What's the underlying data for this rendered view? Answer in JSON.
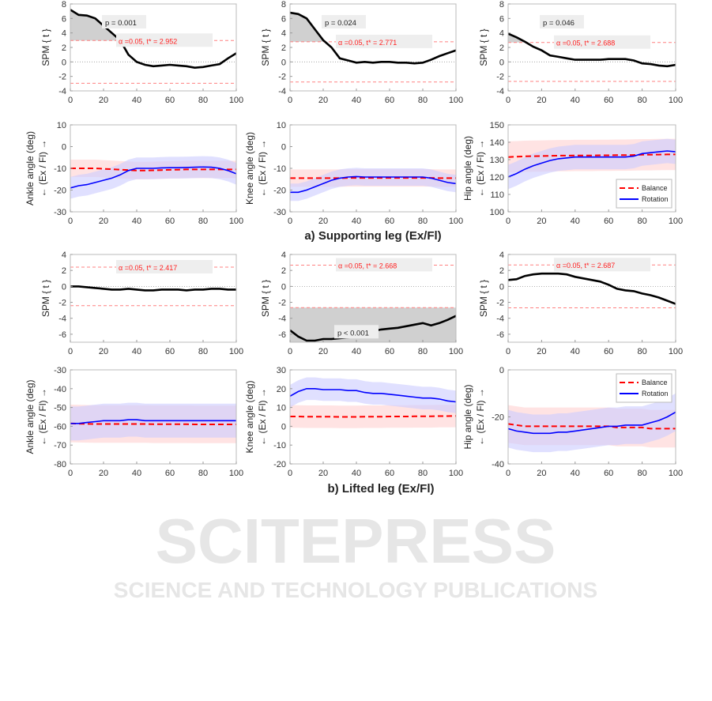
{
  "watermark": {
    "line1": "SCITEPRESS",
    "line2": "SCIENCE AND TECHNOLOGY PUBLICATIONS"
  },
  "section_titles": [
    "a) Supporting leg (Ex/Fl)",
    "b) Lifted leg (Ex/Fl)"
  ],
  "legend": {
    "balance": "Balance",
    "rotation": "Rotation"
  },
  "colors": {
    "spm": "#000000",
    "threshold": "#ff8080",
    "balance": "#ff0000",
    "rotation": "#0000ff",
    "balance_band": "#ffd0d0",
    "rotation_band": "#ccccff",
    "cluster": "#d0d0d0"
  },
  "chart_data": [
    {
      "type": "line",
      "kind": "spm",
      "row": 0,
      "col": 0,
      "ylabel": "SPM { t }",
      "xlim": [
        0,
        100
      ],
      "ylim": [
        -4,
        8
      ],
      "xticks": [
        0,
        20,
        40,
        60,
        80,
        100
      ],
      "yticks": [
        -4,
        -2,
        0,
        2,
        4,
        6,
        8
      ],
      "threshold": 2.952,
      "threshold_label": "α  =0.05,     t* = 2.952",
      "p_label": "p = 0.001",
      "cluster": "upper",
      "x": [
        0,
        5,
        10,
        15,
        20,
        25,
        30,
        35,
        40,
        45,
        50,
        55,
        60,
        65,
        70,
        75,
        80,
        85,
        90,
        95,
        100
      ],
      "y": [
        7.2,
        6.5,
        6.4,
        6.0,
        5.0,
        4.0,
        3.0,
        1.0,
        0,
        -0.4,
        -0.6,
        -0.5,
        -0.4,
        -0.5,
        -0.6,
        -0.8,
        -0.7,
        -0.5,
        -0.3,
        0.5,
        1.2
      ]
    },
    {
      "type": "line",
      "kind": "spm",
      "row": 0,
      "col": 1,
      "ylabel": "SPM { t }",
      "xlim": [
        0,
        100
      ],
      "ylim": [
        -4,
        8
      ],
      "xticks": [
        0,
        20,
        40,
        60,
        80,
        100
      ],
      "yticks": [
        -4,
        -2,
        0,
        2,
        4,
        6,
        8
      ],
      "threshold": 2.771,
      "threshold_label": "α  =0.05,     t* = 2.771",
      "p_label": "p = 0.024",
      "cluster": "upper",
      "x": [
        0,
        5,
        10,
        15,
        20,
        25,
        30,
        35,
        40,
        45,
        50,
        55,
        60,
        65,
        70,
        75,
        80,
        85,
        90,
        95,
        100
      ],
      "y": [
        6.8,
        6.6,
        6.0,
        4.5,
        3.0,
        2.0,
        0.5,
        0.2,
        -0.1,
        0,
        -0.1,
        0,
        0,
        -0.1,
        -0.1,
        -0.2,
        -0.1,
        0.3,
        0.8,
        1.2,
        1.6
      ]
    },
    {
      "type": "line",
      "kind": "spm",
      "row": 0,
      "col": 2,
      "ylabel": "SPM { t }",
      "xlim": [
        0,
        100
      ],
      "ylim": [
        -4,
        8
      ],
      "xticks": [
        0,
        20,
        40,
        60,
        80,
        100
      ],
      "yticks": [
        -4,
        -2,
        0,
        2,
        4,
        6,
        8
      ],
      "threshold": 2.688,
      "threshold_label": "α  =0.05,     t* = 2.688",
      "p_label": "p = 0.046",
      "cluster": "upper",
      "x": [
        0,
        5,
        10,
        15,
        20,
        25,
        30,
        35,
        40,
        45,
        50,
        55,
        60,
        65,
        70,
        75,
        80,
        85,
        90,
        95,
        100
      ],
      "y": [
        3.9,
        3.4,
        2.8,
        2.1,
        1.6,
        0.9,
        0.7,
        0.5,
        0.3,
        0.3,
        0.3,
        0.3,
        0.4,
        0.4,
        0.4,
        0.2,
        -0.2,
        -0.3,
        -0.5,
        -0.6,
        -0.4
      ]
    },
    {
      "type": "line",
      "kind": "angle",
      "row": 1,
      "col": 0,
      "ylabel": "Ankle angle (deg)",
      "ylabel2": "← (Ex / Fl) →",
      "xlim": [
        0,
        100
      ],
      "ylim": [
        -30,
        10
      ],
      "xticks": [
        0,
        20,
        40,
        60,
        80,
        100
      ],
      "yticks": [
        -30,
        -20,
        -10,
        0,
        10
      ],
      "x": [
        0,
        5,
        10,
        15,
        20,
        25,
        30,
        35,
        40,
        45,
        50,
        55,
        60,
        65,
        70,
        75,
        80,
        85,
        90,
        95,
        100
      ],
      "series": [
        {
          "name": "Balance",
          "sd": 4,
          "y": [
            -10,
            -10,
            -10,
            -10,
            -10.2,
            -10.4,
            -10.6,
            -10.8,
            -11,
            -11,
            -10.9,
            -10.8,
            -10.7,
            -10.6,
            -10.5,
            -10.5,
            -10.5,
            -10.5,
            -10.5,
            -10.5,
            -10.5
          ]
        },
        {
          "name": "Rotation",
          "sd": 5,
          "y": [
            -19,
            -18,
            -17.5,
            -16.5,
            -15.5,
            -14.5,
            -13,
            -11,
            -10,
            -10,
            -10,
            -9.8,
            -9.7,
            -9.7,
            -9.6,
            -9.5,
            -9.4,
            -9.5,
            -10,
            -11,
            -12.5
          ]
        }
      ]
    },
    {
      "type": "line",
      "kind": "angle",
      "row": 1,
      "col": 1,
      "ylabel": "Knee angle (deg)",
      "ylabel2": "← (Ex / Fl) →",
      "xlim": [
        0,
        100
      ],
      "ylim": [
        -30,
        10
      ],
      "xticks": [
        0,
        20,
        40,
        60,
        80,
        100
      ],
      "yticks": [
        -30,
        -20,
        -10,
        0,
        10
      ],
      "x": [
        0,
        5,
        10,
        15,
        20,
        25,
        30,
        35,
        40,
        45,
        50,
        55,
        60,
        65,
        70,
        75,
        80,
        85,
        90,
        95,
        100
      ],
      "series": [
        {
          "name": "Balance",
          "sd": 4,
          "y": [
            -14.5,
            -14.5,
            -14.5,
            -14.5,
            -14.5,
            -14.5,
            -14.5,
            -14.4,
            -14.4,
            -14.4,
            -14.4,
            -14.4,
            -14.4,
            -14.4,
            -14.4,
            -14.4,
            -14.4,
            -14.4,
            -14.5,
            -14.5,
            -14.5
          ]
        },
        {
          "name": "Rotation",
          "sd": 4,
          "y": [
            -21,
            -21,
            -20,
            -18.5,
            -17,
            -15.5,
            -14.5,
            -14,
            -13.8,
            -14,
            -14,
            -14,
            -14,
            -14,
            -14,
            -14,
            -14,
            -14.5,
            -15.5,
            -16.5,
            -17
          ]
        }
      ]
    },
    {
      "type": "line",
      "kind": "angle",
      "row": 1,
      "col": 2,
      "ylabel": "Hip angle (deg)",
      "ylabel2": "← (Ex / Fl) →",
      "xlim": [
        0,
        100
      ],
      "ylim": [
        100,
        150
      ],
      "xticks": [
        0,
        20,
        40,
        60,
        80,
        100
      ],
      "yticks": [
        100,
        110,
        120,
        130,
        140,
        150
      ],
      "legend": "bottom-right",
      "x": [
        0,
        5,
        10,
        15,
        20,
        25,
        30,
        35,
        40,
        45,
        50,
        55,
        60,
        65,
        70,
        75,
        80,
        85,
        90,
        95,
        100
      ],
      "series": [
        {
          "name": "Balance",
          "sd": 9,
          "y": [
            131.5,
            131.7,
            131.9,
            132,
            132.1,
            132.2,
            132.3,
            132.3,
            132.4,
            132.4,
            132.4,
            132.5,
            132.5,
            132.6,
            132.6,
            132.7,
            132.8,
            132.8,
            132.9,
            133,
            133
          ]
        },
        {
          "name": "Rotation",
          "sd": 7,
          "y": [
            120,
            122,
            124.5,
            126.5,
            128,
            129.5,
            130.5,
            131,
            131.5,
            131.5,
            131.5,
            131.5,
            131.5,
            131.5,
            131.5,
            132,
            133.5,
            134,
            134.5,
            135,
            134.5
          ]
        }
      ]
    },
    {
      "type": "line",
      "kind": "spm",
      "row": 2,
      "col": 0,
      "ylabel": "SPM { t }",
      "xlim": [
        0,
        100
      ],
      "ylim": [
        -7,
        4
      ],
      "xticks": [
        0,
        20,
        40,
        60,
        80,
        100
      ],
      "yticks": [
        -6,
        -4,
        -2,
        0,
        2,
        4
      ],
      "threshold": 2.417,
      "threshold_label": "α  =0.05,     t* = 2.417",
      "p_label": "",
      "cluster": "none",
      "x": [
        0,
        5,
        10,
        15,
        20,
        25,
        30,
        35,
        40,
        45,
        50,
        55,
        60,
        65,
        70,
        75,
        80,
        85,
        90,
        95,
        100
      ],
      "y": [
        0,
        0,
        -0.1,
        -0.2,
        -0.3,
        -0.4,
        -0.4,
        -0.3,
        -0.4,
        -0.5,
        -0.5,
        -0.4,
        -0.4,
        -0.4,
        -0.5,
        -0.4,
        -0.4,
        -0.3,
        -0.3,
        -0.4,
        -0.4
      ]
    },
    {
      "type": "line",
      "kind": "spm",
      "row": 2,
      "col": 1,
      "ylabel": "SPM { t }",
      "xlim": [
        0,
        100
      ],
      "ylim": [
        -7,
        4
      ],
      "xticks": [
        0,
        20,
        40,
        60,
        80,
        100
      ],
      "yticks": [
        -6,
        -4,
        -2,
        0,
        2,
        4
      ],
      "threshold": 2.668,
      "threshold_label": "α  =0.05,     t* = 2.668",
      "p_label": "p < 0.001",
      "cluster": "lower",
      "x": [
        0,
        5,
        10,
        15,
        20,
        25,
        30,
        35,
        40,
        45,
        50,
        55,
        60,
        65,
        70,
        75,
        80,
        85,
        90,
        95,
        100
      ],
      "y": [
        -5.5,
        -6.3,
        -6.8,
        -6.8,
        -6.6,
        -6.6,
        -6.5,
        -6.4,
        -6.3,
        -5.9,
        -5.6,
        -5.4,
        -5.3,
        -5.2,
        -5.0,
        -4.8,
        -4.6,
        -4.9,
        -4.6,
        -4.2,
        -3.7
      ]
    },
    {
      "type": "line",
      "kind": "spm",
      "row": 2,
      "col": 2,
      "ylabel": "SPM { t }",
      "xlim": [
        0,
        100
      ],
      "ylim": [
        -7,
        4
      ],
      "xticks": [
        0,
        20,
        40,
        60,
        80,
        100
      ],
      "yticks": [
        -6,
        -4,
        -2,
        0,
        2,
        4
      ],
      "threshold": 2.687,
      "threshold_label": "α  =0.05,     t* = 2.687",
      "p_label": "",
      "cluster": "none",
      "x": [
        0,
        5,
        10,
        15,
        20,
        25,
        30,
        35,
        40,
        45,
        50,
        55,
        60,
        65,
        70,
        75,
        80,
        85,
        90,
        95,
        100
      ],
      "y": [
        0.8,
        0.9,
        1.3,
        1.5,
        1.6,
        1.6,
        1.6,
        1.5,
        1.2,
        1.0,
        0.8,
        0.6,
        0.2,
        -0.3,
        -0.5,
        -0.6,
        -0.9,
        -1.1,
        -1.4,
        -1.8,
        -2.2
      ]
    },
    {
      "type": "line",
      "kind": "angle",
      "row": 3,
      "col": 0,
      "ylabel": "Ankle angle (deg)",
      "ylabel2": "← (Ex / Fl) →",
      "xlim": [
        0,
        100
      ],
      "ylim": [
        -80,
        -30
      ],
      "xticks": [
        0,
        20,
        40,
        60,
        80,
        100
      ],
      "yticks": [
        -80,
        -70,
        -60,
        -50,
        -40,
        -30
      ],
      "x": [
        0,
        5,
        10,
        15,
        20,
        25,
        30,
        35,
        40,
        45,
        50,
        55,
        60,
        65,
        70,
        75,
        80,
        85,
        90,
        95,
        100
      ],
      "series": [
        {
          "name": "Balance",
          "sd": 10,
          "y": [
            -58.5,
            -58.6,
            -58.7,
            -58.8,
            -58.8,
            -58.8,
            -58.8,
            -58.8,
            -58.8,
            -58.8,
            -58.9,
            -58.9,
            -58.9,
            -58.9,
            -58.9,
            -59,
            -59,
            -59,
            -59,
            -59,
            -59
          ]
        },
        {
          "name": "Rotation",
          "sd": 9,
          "y": [
            -58.5,
            -58.5,
            -58,
            -57.5,
            -57,
            -57,
            -57,
            -56.5,
            -56.5,
            -57,
            -57,
            -57,
            -57,
            -57,
            -57,
            -57,
            -57,
            -57,
            -57,
            -57,
            -57
          ]
        }
      ]
    },
    {
      "type": "line",
      "kind": "angle",
      "row": 3,
      "col": 1,
      "ylabel": "Knee angle (deg)",
      "ylabel2": "← (Ex / Fl) →",
      "xlim": [
        0,
        100
      ],
      "ylim": [
        -20,
        30
      ],
      "xticks": [
        0,
        20,
        40,
        60,
        80,
        100
      ],
      "yticks": [
        -20,
        -10,
        0,
        10,
        20,
        30
      ],
      "x": [
        0,
        5,
        10,
        15,
        20,
        25,
        30,
        35,
        40,
        45,
        50,
        55,
        60,
        65,
        70,
        75,
        80,
        85,
        90,
        95,
        100
      ],
      "series": [
        {
          "name": "Balance",
          "sd": 6,
          "y": [
            5.2,
            5.2,
            5.1,
            5.1,
            5.1,
            5.1,
            5.0,
            5.0,
            5.0,
            5.1,
            5.1,
            5.1,
            5.2,
            5.2,
            5.2,
            5.3,
            5.3,
            5.3,
            5.4,
            5.4,
            5.5
          ]
        },
        {
          "name": "Rotation",
          "sd": 6,
          "y": [
            16,
            18.5,
            20,
            20,
            19.5,
            19.5,
            19.5,
            19,
            19,
            18,
            17.5,
            17.5,
            17,
            16.5,
            16,
            15.5,
            15,
            15,
            14.5,
            13.5,
            13
          ]
        }
      ]
    },
    {
      "type": "line",
      "kind": "angle",
      "row": 3,
      "col": 2,
      "ylabel": "Hip angle (deg)",
      "ylabel2": "← (Ex / Fl) →",
      "xlim": [
        0,
        100
      ],
      "ylim": [
        -40,
        0
      ],
      "xticks": [
        0,
        20,
        40,
        60,
        80,
        100
      ],
      "yticks": [
        -40,
        -20,
        0
      ],
      "legend": "top-right",
      "x": [
        0,
        5,
        10,
        15,
        20,
        25,
        30,
        35,
        40,
        45,
        50,
        55,
        60,
        65,
        70,
        75,
        80,
        85,
        90,
        95,
        100
      ],
      "series": [
        {
          "name": "Balance",
          "sd": 8,
          "y": [
            -23,
            -23.5,
            -24,
            -24,
            -24,
            -24,
            -24,
            -24,
            -24,
            -24,
            -24,
            -24,
            -24,
            -24.5,
            -24.5,
            -24.5,
            -24.5,
            -25,
            -25,
            -25,
            -25
          ]
        },
        {
          "name": "Rotation",
          "sd": 8,
          "y": [
            -25,
            -26,
            -26.5,
            -27,
            -27,
            -27,
            -26.5,
            -26.5,
            -26,
            -25.5,
            -25,
            -24.5,
            -24,
            -24,
            -23.5,
            -23.5,
            -23.5,
            -22.5,
            -21.5,
            -20,
            -18
          ]
        }
      ]
    }
  ]
}
